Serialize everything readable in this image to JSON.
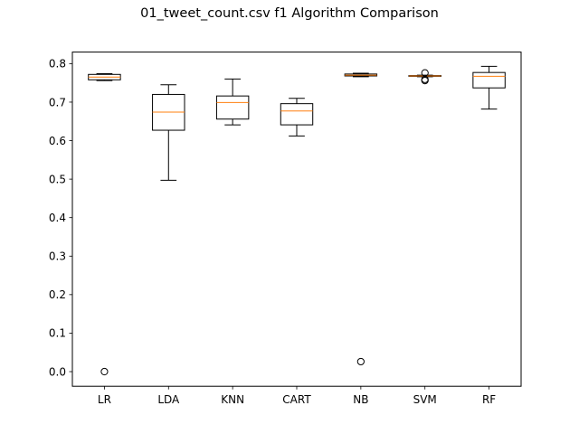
{
  "chart_data": {
    "type": "box",
    "title": "01_tweet_count.csv f1 Algorithm Comparison",
    "xlabel": "",
    "ylabel": "",
    "categories": [
      "LR",
      "LDA",
      "KNN",
      "CART",
      "NB",
      "SVM",
      "RF"
    ],
    "ylim": [
      -0.038,
      0.83
    ],
    "yticks": [
      0.0,
      0.1,
      0.2,
      0.3,
      0.4,
      0.5,
      0.6,
      0.7,
      0.8
    ],
    "ytick_labels": [
      "0.0",
      "0.1",
      "0.2",
      "0.3",
      "0.4",
      "0.5",
      "0.6",
      "0.7",
      "0.8"
    ],
    "grid": false,
    "boxes": [
      {
        "name": "LR",
        "whisker_low": 0.756,
        "q1": 0.758,
        "median": 0.765,
        "q3": 0.772,
        "whisker_high": 0.774,
        "outliers": [
          0.0
        ]
      },
      {
        "name": "LDA",
        "whisker_low": 0.497,
        "q1": 0.627,
        "median": 0.674,
        "q3": 0.72,
        "whisker_high": 0.745,
        "outliers": []
      },
      {
        "name": "KNN",
        "whisker_low": 0.641,
        "q1": 0.656,
        "median": 0.699,
        "q3": 0.716,
        "whisker_high": 0.76,
        "outliers": []
      },
      {
        "name": "CART",
        "whisker_low": 0.612,
        "q1": 0.641,
        "median": 0.677,
        "q3": 0.696,
        "whisker_high": 0.71,
        "outliers": []
      },
      {
        "name": "NB",
        "whisker_low": 0.766,
        "q1": 0.768,
        "median": 0.77,
        "q3": 0.773,
        "whisker_high": 0.775,
        "outliers": [
          0.026
        ]
      },
      {
        "name": "SVM",
        "whisker_low": 0.766,
        "q1": 0.767,
        "median": 0.768,
        "q3": 0.769,
        "whisker_high": 0.77,
        "outliers": [
          0.756,
          0.759,
          0.776
        ]
      },
      {
        "name": "RF",
        "whisker_low": 0.682,
        "q1": 0.737,
        "median": 0.767,
        "q3": 0.777,
        "whisker_high": 0.793,
        "outliers": []
      }
    ],
    "colors": {
      "box": "#000000",
      "median": "#ff7f0e",
      "outlier": "#000000"
    }
  }
}
